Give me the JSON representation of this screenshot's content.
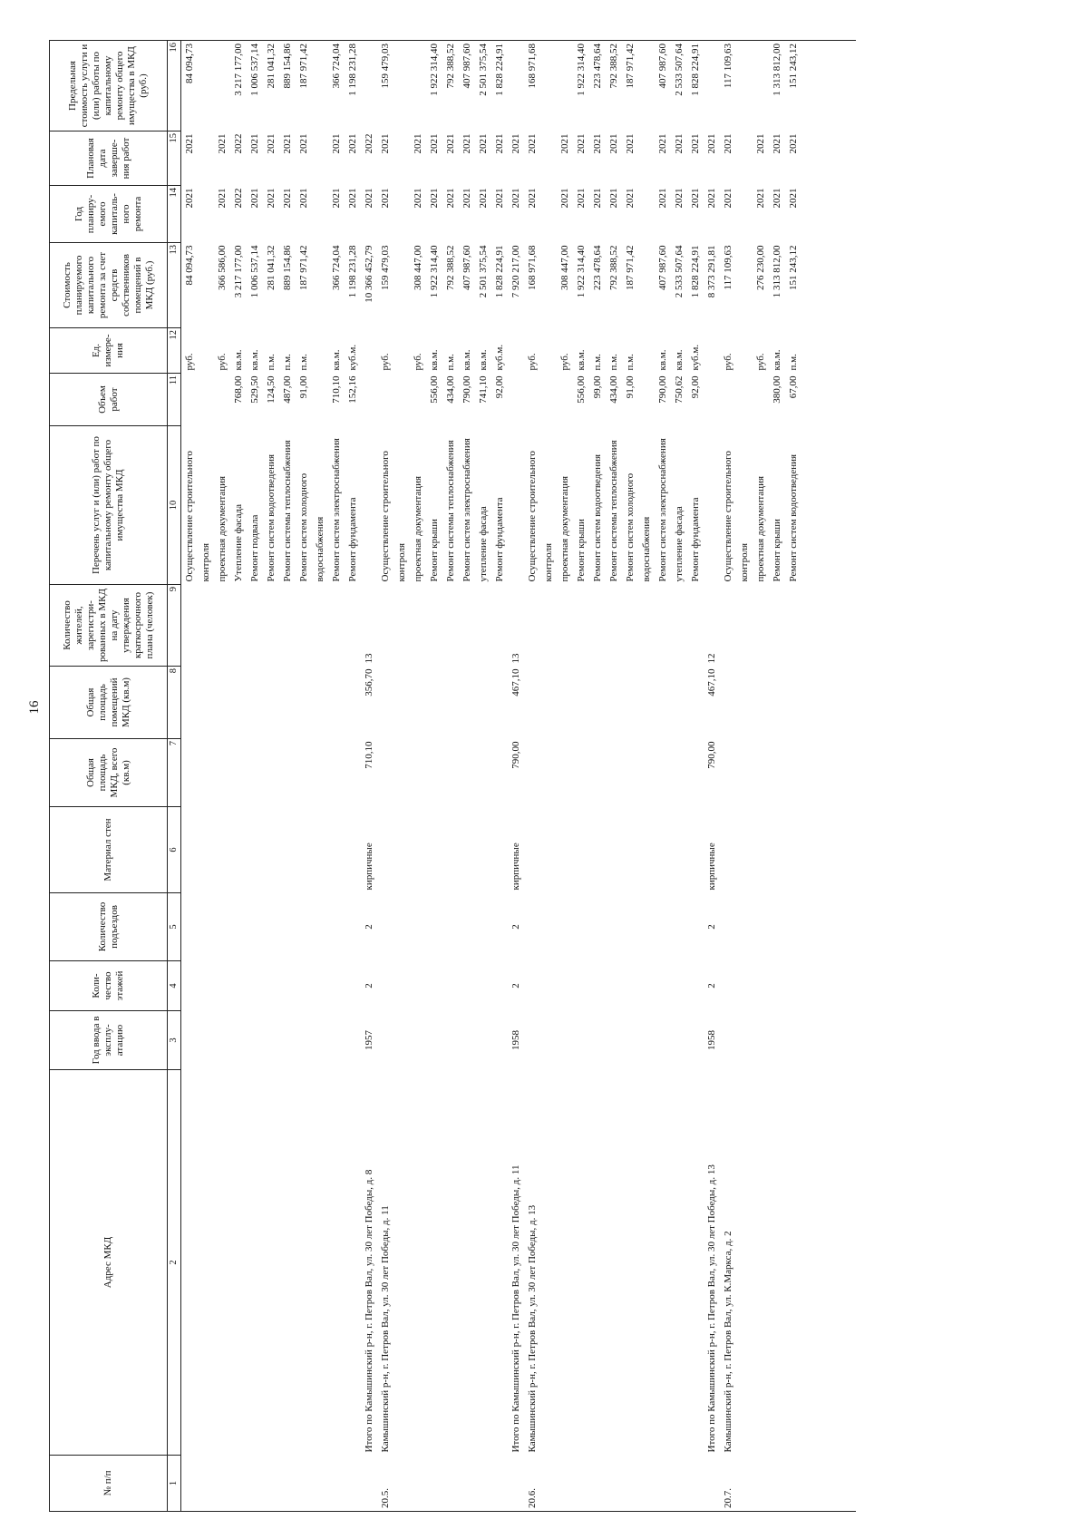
{
  "page_number": "16",
  "headers": [
    "№ п/п",
    "Адрес МКД",
    "Год ввода в эксплу-атацию",
    "Коли-чество этажей",
    "Количество подъездов",
    "Материал стен",
    "Общая площадь МКД, всего (кв.м)",
    "Общая площадь помещений МКД (кв.м)",
    "Количество жителей, зарегистри-рованных в МКД на дату утверждения краткосрочного плана (человек)",
    "Перечень услуг и (или) работ по капитальному ремонту общего имущества МКД",
    "Объем работ",
    "Ед. измере-ния",
    "Стоимость планируемого капитального ремонта за счет средств собственников помещений в МКД (руб.)",
    "Год планиру-емого капиталь-ного ремонта",
    "Плановая дата заверше-ния работ",
    "Предельная стоимость услуги и (или) работы по капитальному ремонту общего имущества в МКД (руб.)"
  ],
  "column_numbers": [
    "1",
    "2",
    "3",
    "4",
    "5",
    "6",
    "7",
    "8",
    "9",
    "10",
    "11",
    "12",
    "13",
    "14",
    "15",
    "16"
  ],
  "rows": [
    {
      "type": "item",
      "cells": [
        "",
        "",
        "",
        "",
        "",
        "",
        "",
        "",
        "",
        "Осуществление строительного контроля",
        "",
        "руб.",
        "84 094,73",
        "2021",
        "2021",
        "84 094,73"
      ]
    },
    {
      "type": "item",
      "cells": [
        "",
        "",
        "",
        "",
        "",
        "",
        "",
        "",
        "",
        "проектная документация",
        "",
        "руб.",
        "366 586,00",
        "2021",
        "2021",
        ""
      ]
    },
    {
      "type": "item",
      "cells": [
        "",
        "",
        "",
        "",
        "",
        "",
        "",
        "",
        "",
        "Утепление фасада",
        "768,00",
        "кв.м.",
        "3 217 177,00",
        "2022",
        "2022",
        "3 217 177,00"
      ]
    },
    {
      "type": "item",
      "cells": [
        "",
        "",
        "",
        "",
        "",
        "",
        "",
        "",
        "",
        "Ремонт подвала",
        "529,50",
        "кв.м.",
        "1 006 537,14",
        "2021",
        "2021",
        "1 006 537,14"
      ]
    },
    {
      "type": "item",
      "cells": [
        "",
        "",
        "",
        "",
        "",
        "",
        "",
        "",
        "",
        "Ремонт систем водоотведения",
        "124,50",
        "п.м.",
        "281 041,32",
        "2021",
        "2021",
        "281 041,32"
      ]
    },
    {
      "type": "item",
      "cells": [
        "",
        "",
        "",
        "",
        "",
        "",
        "",
        "",
        "",
        "Ремонт системы теплоснабжения",
        "487,00",
        "п.м.",
        "889 154,86",
        "2021",
        "2021",
        "889 154,86"
      ]
    },
    {
      "type": "item",
      "cells": [
        "",
        "",
        "",
        "",
        "",
        "",
        "",
        "",
        "",
        "Ремонт систем холодного водоснабжения",
        "91,00",
        "п.м.",
        "187 971,42",
        "2021",
        "2021",
        "187 971,42"
      ]
    },
    {
      "type": "item",
      "cells": [
        "",
        "",
        "",
        "",
        "",
        "",
        "",
        "",
        "",
        "Ремонт систем электроснабжения",
        "710,10",
        "кв.м.",
        "366 724,04",
        "2021",
        "2021",
        "366 724,04"
      ]
    },
    {
      "type": "item",
      "cells": [
        "",
        "",
        "",
        "",
        "",
        "",
        "",
        "",
        "",
        "Ремонт фундамента",
        "152,16",
        "куб.м.",
        "1 198 231,28",
        "2021",
        "2021",
        "1 198 231,28"
      ]
    },
    {
      "type": "total",
      "cells": [
        "",
        "Итого по Камышинский р-н, г. Петров Вал, ул. 30 лет Победы, д. 8",
        "1957",
        "2",
        "2",
        "кирпичные",
        "710,10",
        "356,70",
        "13",
        "",
        "",
        "",
        "10 366 452,79",
        "2021",
        "2022",
        ""
      ]
    },
    {
      "type": "section",
      "cells": [
        "20.5.",
        "Камышинский р-н, г. Петров Вал, ул. 30 лет Победы, д. 11",
        "",
        "",
        "",
        "",
        "",
        "",
        "",
        "Осуществление строительного контроля",
        "",
        "руб.",
        "159 479,03",
        "2021",
        "2021",
        "159 479,03"
      ]
    },
    {
      "type": "item",
      "cells": [
        "",
        "",
        "",
        "",
        "",
        "",
        "",
        "",
        "",
        "проектная документация",
        "",
        "руб.",
        "308 447,00",
        "2021",
        "2021",
        ""
      ]
    },
    {
      "type": "item",
      "cells": [
        "",
        "",
        "",
        "",
        "",
        "",
        "",
        "",
        "",
        "Ремонт крыши",
        "556,00",
        "кв.м.",
        "1 922 314,40",
        "2021",
        "2021",
        "1 922 314,40"
      ]
    },
    {
      "type": "item",
      "cells": [
        "",
        "",
        "",
        "",
        "",
        "",
        "",
        "",
        "",
        "Ремонт системы теплоснабжения",
        "434,00",
        "п.м.",
        "792 388,52",
        "2021",
        "2021",
        "792 388,52"
      ]
    },
    {
      "type": "item",
      "cells": [
        "",
        "",
        "",
        "",
        "",
        "",
        "",
        "",
        "",
        "Ремонт систем электроснабжения",
        "790,00",
        "кв.м.",
        "407 987,60",
        "2021",
        "2021",
        "407 987,60"
      ]
    },
    {
      "type": "item",
      "cells": [
        "",
        "",
        "",
        "",
        "",
        "",
        "",
        "",
        "",
        "утепление фасада",
        "741,10",
        "кв.м.",
        "2 501 375,54",
        "2021",
        "2021",
        "2 501 375,54"
      ]
    },
    {
      "type": "item",
      "cells": [
        "",
        "",
        "",
        "",
        "",
        "",
        "",
        "",
        "",
        "Ремонт фундамента",
        "92,00",
        "куб.м.",
        "1 828 224,91",
        "2021",
        "2021",
        "1 828 224,91"
      ]
    },
    {
      "type": "total",
      "cells": [
        "",
        "Итого по Камышинский р-н, г. Петров Вал, ул. 30 лет Победы, д. 11",
        "1958",
        "2",
        "2",
        "кирпичные",
        "790,00",
        "467,10",
        "13",
        "",
        "",
        "",
        "7 920 217,00",
        "2021",
        "2021",
        ""
      ]
    },
    {
      "type": "section",
      "cells": [
        "20.6.",
        "Камышинский р-н, г. Петров Вал, ул. 30 лет Победы, д. 13",
        "",
        "",
        "",
        "",
        "",
        "",
        "",
        "Осуществление строительного контроля",
        "",
        "руб.",
        "168 971,68",
        "2021",
        "2021",
        "168 971,68"
      ]
    },
    {
      "type": "item",
      "cells": [
        "",
        "",
        "",
        "",
        "",
        "",
        "",
        "",
        "",
        "проектная документация",
        "",
        "руб.",
        "308 447,00",
        "2021",
        "2021",
        ""
      ]
    },
    {
      "type": "item",
      "cells": [
        "",
        "",
        "",
        "",
        "",
        "",
        "",
        "",
        "",
        "Ремонт крыши",
        "556,00",
        "кв.м.",
        "1 922 314,40",
        "2021",
        "2021",
        "1 922 314,40"
      ]
    },
    {
      "type": "item",
      "cells": [
        "",
        "",
        "",
        "",
        "",
        "",
        "",
        "",
        "",
        "Ремонт систем водоотведения",
        "99,00",
        "п.м.",
        "223 478,64",
        "2021",
        "2021",
        "223 478,64"
      ]
    },
    {
      "type": "item",
      "cells": [
        "",
        "",
        "",
        "",
        "",
        "",
        "",
        "",
        "",
        "Ремонт системы теплоснабжения",
        "434,00",
        "п.м.",
        "792 388,52",
        "2021",
        "2021",
        "792 388,52"
      ]
    },
    {
      "type": "item",
      "cells": [
        "",
        "",
        "",
        "",
        "",
        "",
        "",
        "",
        "",
        "Ремонт систем холодного водоснабжения",
        "91,00",
        "п.м.",
        "187 971,42",
        "2021",
        "2021",
        "187 971,42"
      ]
    },
    {
      "type": "item",
      "cells": [
        "",
        "",
        "",
        "",
        "",
        "",
        "",
        "",
        "",
        "Ремонт систем электроснабжения",
        "790,00",
        "кв.м.",
        "407 987,60",
        "2021",
        "2021",
        "407 987,60"
      ]
    },
    {
      "type": "item",
      "cells": [
        "",
        "",
        "",
        "",
        "",
        "",
        "",
        "",
        "",
        "утепление фасада",
        "750,62",
        "кв.м.",
        "2 533 507,64",
        "2021",
        "2021",
        "2 533 507,64"
      ]
    },
    {
      "type": "item",
      "cells": [
        "",
        "",
        "",
        "",
        "",
        "",
        "",
        "",
        "",
        "Ремонт фундамента",
        "92,00",
        "куб.м.",
        "1 828 224,91",
        "2021",
        "2021",
        "1 828 224,91"
      ]
    },
    {
      "type": "total",
      "cells": [
        "",
        "Итого по Камышинский р-н, г. Петров Вал, ул. 30 лет Победы, д. 13",
        "1958",
        "2",
        "2",
        "кирпичные",
        "790,00",
        "467,10",
        "12",
        "",
        "",
        "",
        "8 373 291,81",
        "2021",
        "2021",
        ""
      ]
    },
    {
      "type": "section",
      "cells": [
        "20.7.",
        "Камышинский р-н, г. Петров Вал, ул. К.Маркса, д. 2",
        "",
        "",
        "",
        "",
        "",
        "",
        "",
        "Осуществление строительного контроля",
        "",
        "руб.",
        "117 109,63",
        "2021",
        "2021",
        "117 109,63"
      ]
    },
    {
      "type": "item",
      "cells": [
        "",
        "",
        "",
        "",
        "",
        "",
        "",
        "",
        "",
        "проектная документация",
        "",
        "руб.",
        "276 230,00",
        "2021",
        "2021",
        ""
      ]
    },
    {
      "type": "item",
      "cells": [
        "",
        "",
        "",
        "",
        "",
        "",
        "",
        "",
        "",
        "Ремонт крыши",
        "380,00",
        "кв.м.",
        "1 313 812,00",
        "2021",
        "2021",
        "1 313 812,00"
      ]
    },
    {
      "type": "item",
      "cells": [
        "",
        "",
        "",
        "",
        "",
        "",
        "",
        "",
        "",
        "Ремонт систем водоотведения",
        "67,00",
        "п.м.",
        "151 243,12",
        "2021",
        "2021",
        "151 243,12"
      ]
    }
  ]
}
